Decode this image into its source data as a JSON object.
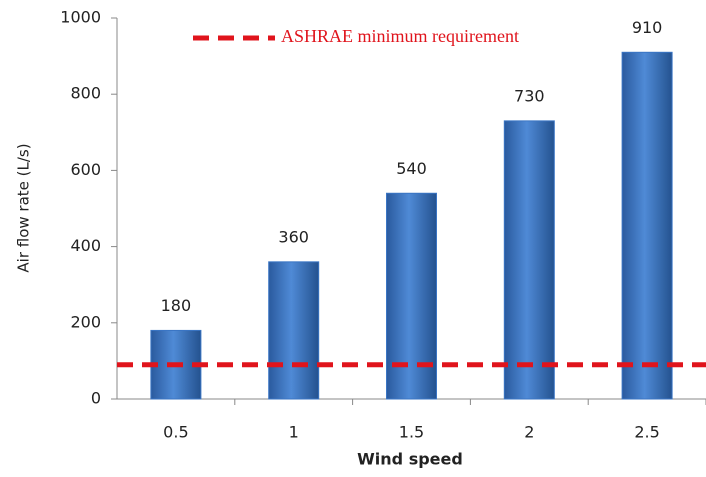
{
  "chart_data": {
    "type": "bar",
    "x_label": "Wind speed",
    "y_label": "Air flow rate (L/s)",
    "categories": [
      "0.5",
      "1",
      "1.5",
      "2",
      "2.5"
    ],
    "values": [
      180,
      360,
      540,
      730,
      910
    ],
    "color": "#3a75c4",
    "ylim": [
      0,
      1000
    ],
    "yticks": [
      0,
      200,
      400,
      600,
      800,
      1000
    ],
    "grid": false,
    "data_labels": true,
    "reference_line": {
      "name": "ASHRAE minimum requirement",
      "value": 90,
      "color": "#e0141c"
    }
  }
}
